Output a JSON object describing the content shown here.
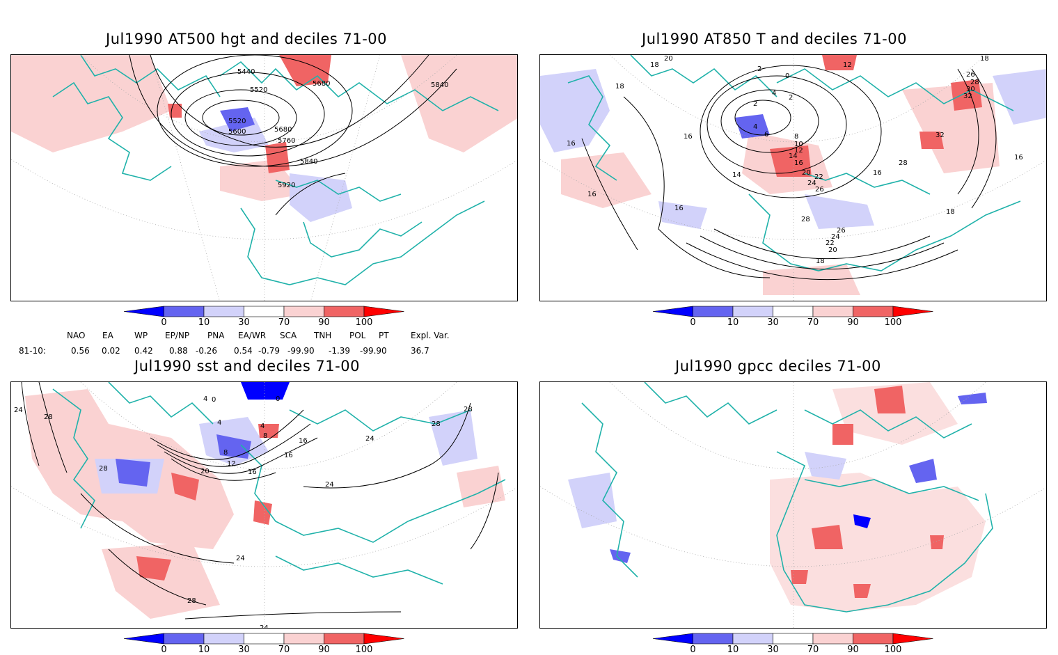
{
  "panels": [
    {
      "title": "Jul1990 AT500 hgt and deciles 71-00",
      "contour_labels": [
        "5440",
        "5520",
        "5600",
        "5520",
        "5680",
        "5760",
        "5840",
        "5920",
        "5680",
        "5840"
      ]
    },
    {
      "title": "Jul1990 AT850 T and deciles 71-00",
      "contour_labels": [
        "20",
        "18",
        "18",
        "16",
        "16",
        "16",
        "14",
        "16",
        "2",
        "0",
        "4",
        "2",
        "2",
        "4",
        "6",
        "8",
        "10",
        "12",
        "14",
        "16",
        "20",
        "22",
        "24",
        "26",
        "28",
        "26",
        "24",
        "22",
        "20",
        "18",
        "16",
        "18",
        "18",
        "26",
        "28",
        "30",
        "32",
        "32",
        "28",
        "16",
        "12"
      ]
    },
    {
      "title": "Jul1990 sst and deciles 71-00",
      "contour_labels": [
        "24",
        "28",
        "28",
        "0",
        "4",
        "4",
        "4",
        "0",
        "8",
        "8",
        "12",
        "16",
        "16",
        "20",
        "24",
        "24",
        "28",
        "28",
        "24",
        "28",
        "16",
        "24"
      ]
    },
    {
      "title": "Jul1990 gpcc deciles 71-00",
      "contour_labels": []
    }
  ],
  "colorbar": {
    "ticks": [
      "0",
      "10",
      "30",
      "70",
      "90",
      "100"
    ],
    "colors": [
      "#0000ff",
      "#6464f0",
      "#d2d2fa",
      "#ffffff",
      "#fad2d2",
      "#f06464",
      "#ff0000"
    ]
  },
  "indices": {
    "headers": [
      "NAO",
      "EA",
      "WP",
      "EP/NP",
      "PNA",
      "EA/WR",
      "SCA",
      "TNH",
      "POL",
      "PT",
      "Expl. Var."
    ],
    "row_label": "81-10:",
    "values": [
      "0.56",
      "0.02",
      "0.42",
      "0.88",
      "-0.26",
      "0.54",
      "-0.79",
      "-99.90",
      "-1.39",
      "-99.90",
      "36.7"
    ]
  }
}
